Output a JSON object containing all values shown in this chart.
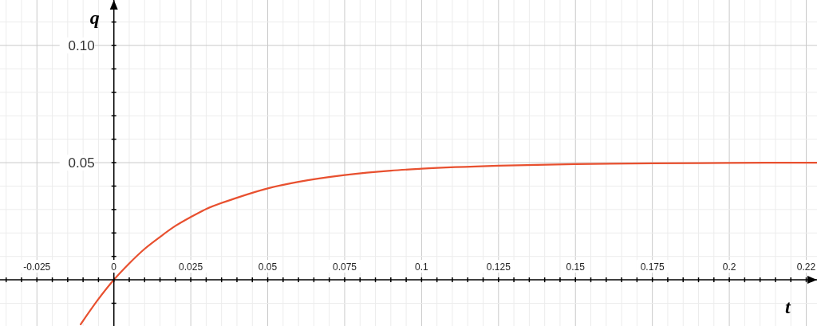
{
  "chart_data": {
    "type": "line",
    "xlabel": "t",
    "ylabel": "q",
    "x": [
      -0.0108,
      -0.005,
      0,
      0.005,
      0.01,
      0.015,
      0.02,
      0.025,
      0.03,
      0.04,
      0.05,
      0.06,
      0.075,
      0.09,
      0.1,
      0.125,
      0.15,
      0.175,
      0.2,
      0.2285
    ],
    "series": [
      {
        "color": "#e8502f",
        "values": [
          -0.019,
          -0.0082,
          0,
          0.007,
          0.0132,
          0.0183,
          0.023,
          0.0268,
          0.0302,
          0.035,
          0.039,
          0.0418,
          0.0447,
          0.0466,
          0.0474,
          0.0487,
          0.0494,
          0.0497,
          0.0499,
          0.05
        ]
      }
    ],
    "xlim": [
      -0.037,
      0.2285
    ],
    "ylim": [
      -0.0197,
      0.1194
    ],
    "xticks": [
      {
        "value": -0.035,
        "label": null
      },
      {
        "value": -0.03,
        "label": null
      },
      -0.025,
      {
        "value": -0.02,
        "label": null
      },
      {
        "value": -0.015,
        "label": null
      },
      {
        "value": -0.01,
        "label": null
      },
      {
        "value": -0.005,
        "label": null
      },
      0,
      {
        "value": 0.005,
        "label": null
      },
      {
        "value": 0.01,
        "label": null
      },
      {
        "value": 0.015,
        "label": null
      },
      {
        "value": 0.02,
        "label": null
      },
      0.025,
      {
        "value": 0.03,
        "label": null
      },
      {
        "value": 0.035,
        "label": null
      },
      {
        "value": 0.04,
        "label": null
      },
      {
        "value": 0.045,
        "label": null
      },
      0.05,
      {
        "value": 0.055,
        "label": null
      },
      {
        "value": 0.06,
        "label": null
      },
      {
        "value": 0.065,
        "label": null
      },
      {
        "value": 0.07,
        "label": null
      },
      0.075,
      {
        "value": 0.08,
        "label": null
      },
      {
        "value": 0.085,
        "label": null
      },
      {
        "value": 0.09,
        "label": null
      },
      {
        "value": 0.095,
        "label": null
      },
      0.1,
      {
        "value": 0.105,
        "label": null
      },
      {
        "value": 0.11,
        "label": null
      },
      {
        "value": 0.115,
        "label": null
      },
      {
        "value": 0.12,
        "label": null
      },
      0.125,
      {
        "value": 0.13,
        "label": null
      },
      {
        "value": 0.135,
        "label": null
      },
      {
        "value": 0.14,
        "label": null
      },
      {
        "value": 0.145,
        "label": null
      },
      0.15,
      {
        "value": 0.155,
        "label": null
      },
      {
        "value": 0.16,
        "label": null
      },
      {
        "value": 0.165,
        "label": null
      },
      {
        "value": 0.17,
        "label": null
      },
      0.175,
      {
        "value": 0.18,
        "label": null
      },
      {
        "value": 0.185,
        "label": null
      },
      {
        "value": 0.19,
        "label": null
      },
      {
        "value": 0.195,
        "label": null
      },
      0.2,
      {
        "value": 0.205,
        "label": null
      },
      {
        "value": 0.21,
        "label": null
      },
      {
        "value": 0.215,
        "label": null
      },
      {
        "value": 0.22,
        "label": null
      },
      {
        "value": 0.225,
        "label": "0.22"
      }
    ],
    "yticks": [
      {
        "value": -0.01,
        "label": null
      },
      {
        "value": 0.01,
        "label": null
      },
      {
        "value": 0.02,
        "label": null
      },
      {
        "value": 0.03,
        "label": null
      },
      {
        "value": 0.04,
        "label": null
      },
      0.05,
      {
        "value": 0.06,
        "label": null
      },
      {
        "value": 0.07,
        "label": null
      },
      {
        "value": 0.08,
        "label": null
      },
      {
        "value": 0.09,
        "label": null
      },
      {
        "value": 0.1,
        "label": "0.10"
      },
      {
        "value": 0.11,
        "label": null
      }
    ],
    "grid": true
  }
}
